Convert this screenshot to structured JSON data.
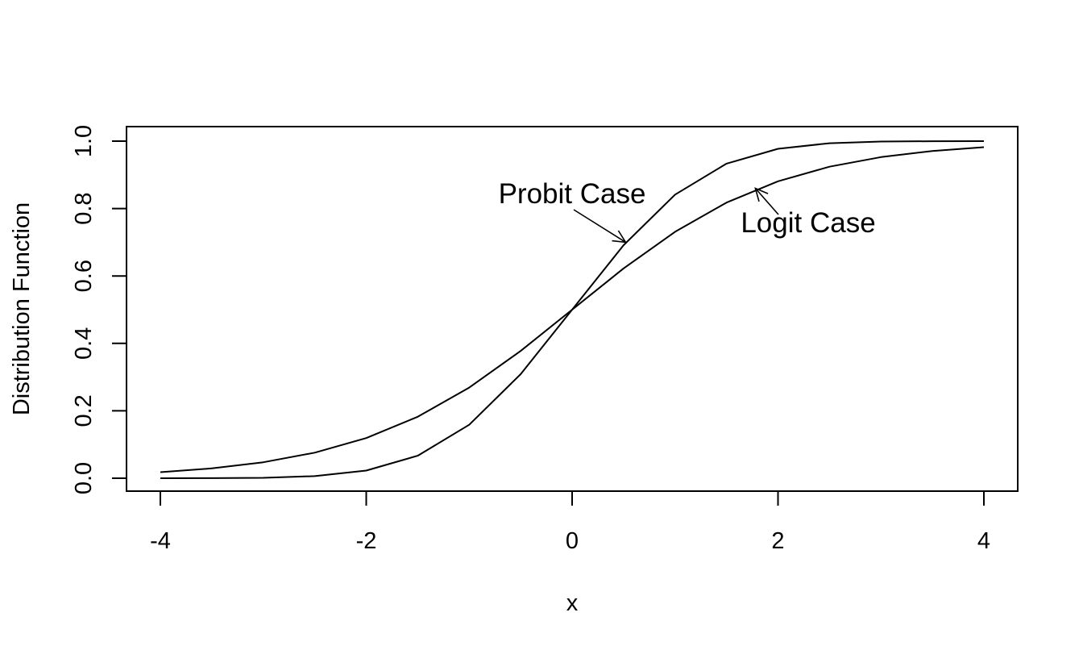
{
  "chart_data": {
    "type": "line",
    "xlabel": "x",
    "ylabel": "Distribution Function",
    "xlim": [
      -4,
      4
    ],
    "ylim": [
      0,
      1
    ],
    "xticks": [
      "-4",
      "-2",
      "0",
      "2",
      "4"
    ],
    "yticks": [
      "0.0",
      "0.2",
      "0.4",
      "0.6",
      "0.8",
      "1.0"
    ],
    "series": [
      {
        "x": [
          -4,
          -3.5,
          -3,
          -2.5,
          -2,
          -1.5,
          -1,
          -0.5,
          0,
          0.5,
          1,
          1.5,
          2,
          2.5,
          3,
          3.5,
          4
        ],
        "y": [
          3e-05,
          0.0002,
          0.0013,
          0.0062,
          0.0228,
          0.0668,
          0.1587,
          0.3085,
          0.5,
          0.6915,
          0.8413,
          0.9332,
          0.9772,
          0.9938,
          0.9987,
          0.9998,
          0.99997
        ]
      },
      {
        "x": [
          -4,
          -3.5,
          -3,
          -2.5,
          -2,
          -1.5,
          -1,
          -0.5,
          0,
          0.5,
          1,
          1.5,
          2,
          2.5,
          3,
          3.5,
          4
        ],
        "y": [
          0.018,
          0.0293,
          0.0474,
          0.0759,
          0.1192,
          0.1824,
          0.2689,
          0.3775,
          0.5,
          0.6225,
          0.7311,
          0.8176,
          0.8808,
          0.9241,
          0.9526,
          0.9707,
          0.982
        ]
      }
    ],
    "annotations": [
      {
        "text": "Probit Case",
        "arrow_to": [
          0.52,
          0.7
        ]
      },
      {
        "text": "Logit Case",
        "arrow_to": [
          1.78,
          0.86
        ]
      }
    ],
    "grid": false,
    "legend": "none"
  }
}
